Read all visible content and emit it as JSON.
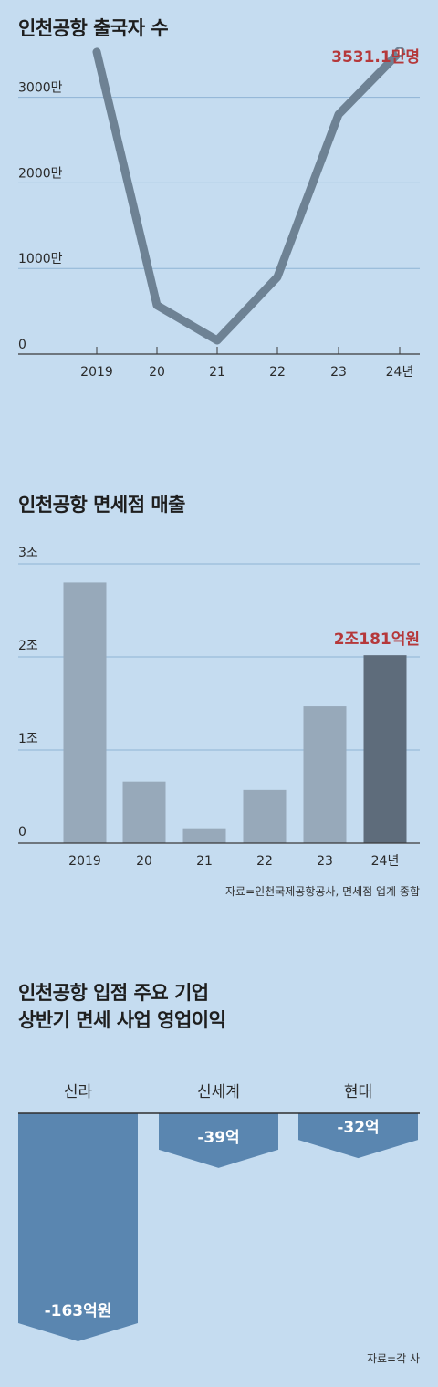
{
  "chart_data": [
    {
      "type": "line",
      "title": "인천공항 출국자 수",
      "categories": [
        "2019",
        "20",
        "21",
        "22",
        "23",
        "24년"
      ],
      "series": [
        {
          "values": [
            3530,
            570,
            160,
            900,
            2800,
            3531.1
          ]
        }
      ],
      "y_ticks": [
        "0",
        "1000만",
        "2000만",
        "3000만"
      ],
      "y_tick_values": [
        0,
        1000,
        2000,
        3000
      ],
      "ylim": [
        0,
        3700
      ],
      "grid": true,
      "annotation": "3531.1만명",
      "colors": {
        "line": "#6e8294",
        "grid": "#8fb3d4",
        "callout": "#b5383a"
      }
    },
    {
      "type": "bar",
      "title": "인천공항 면세점 매출",
      "categories": [
        "2019",
        "20",
        "21",
        "22",
        "23",
        "24년"
      ],
      "values": [
        2.8,
        0.66,
        0.16,
        0.57,
        1.47,
        2.0181
      ],
      "y_ticks": [
        "0",
        "1조",
        "2조",
        "3조"
      ],
      "y_tick_values": [
        0,
        1,
        2,
        3
      ],
      "ylim": [
        0,
        3
      ],
      "grid": true,
      "annotation": "2조181억원",
      "colors": {
        "bar": "#97a9ba",
        "highlight": "#5e6c7b",
        "grid": "#8fb3d4"
      }
    },
    {
      "type": "bar",
      "title": "인천공항 입점 주요 기업 상반기 면세 사업 영업이익",
      "categories": [
        "신라",
        "신세계",
        "현대"
      ],
      "values": [
        -163,
        -39,
        -32
      ],
      "data_labels": [
        "-163억원",
        "-39억",
        "-32억"
      ],
      "colors": {
        "bar": "#5a86b0"
      }
    }
  ],
  "titles": {
    "chart1": "인천공항 출국자 수",
    "chart2": "인천공항 면세점 매출",
    "chart3_line1": "인천공항 입점 주요 기업",
    "chart3_line2": "상반기 면세 사업 영업이익"
  },
  "sources": {
    "chart2": "자료=인천국제공항공사, 면세점 업계 종합",
    "chart3": "자료=각 사"
  }
}
